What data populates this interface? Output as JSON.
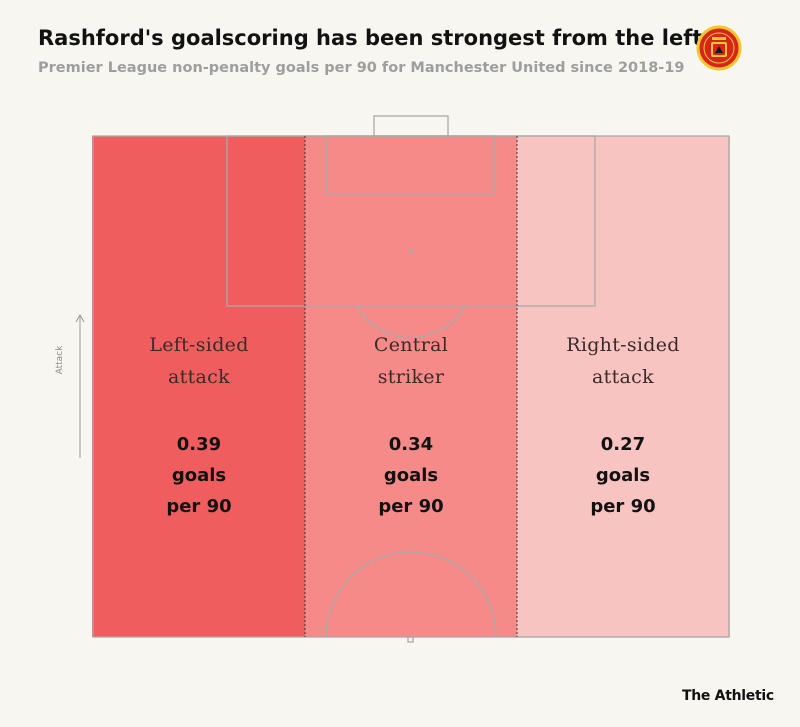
{
  "header": {
    "title": "Rashford's goalscoring has been strongest from the left",
    "subtitle": "Premier League non-penalty goals per 90 for Manchester United since 2018-19"
  },
  "pitch": {
    "direction_label": "Attack",
    "line_color": "#a9a9a9"
  },
  "chart_data": {
    "type": "heatmap",
    "categories": [
      "Left-sided attack",
      "Central striker",
      "Right-sided attack"
    ],
    "values": [
      0.39,
      0.34,
      0.27
    ],
    "zones": [
      {
        "label_lines": [
          "Left-sided",
          "attack"
        ],
        "value": "0.39",
        "unit_lines": [
          "goals",
          "per 90"
        ],
        "color": "#f05d5e"
      },
      {
        "label_lines": [
          "Central",
          "striker"
        ],
        "value": "0.34",
        "unit_lines": [
          "goals",
          "per 90"
        ],
        "color": "#f58a88"
      },
      {
        "label_lines": [
          "Right-sided",
          "attack"
        ],
        "value": "0.27",
        "unit_lines": [
          "goals",
          "per 90"
        ],
        "color": "#f7c4c1"
      }
    ]
  },
  "brand": {
    "logo_text": "The Athletic",
    "crest_icon": "manchester-united-crest-icon",
    "crest_colors": {
      "red": "#d7251d",
      "gold": "#f3c52f",
      "black": "#1a1a1a"
    }
  }
}
